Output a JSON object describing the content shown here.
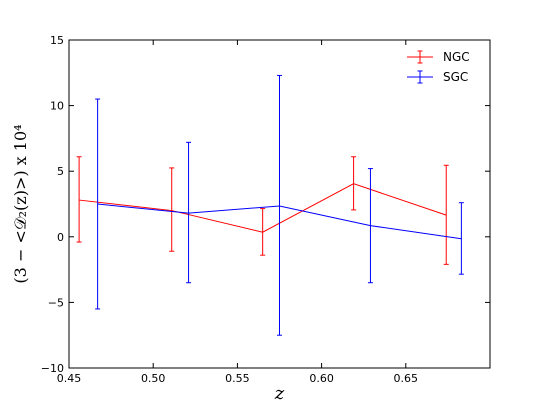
{
  "chart_data": {
    "type": "line",
    "xlabel": "z",
    "ylabel": "(3 − <𝒟₂(z)>) x 10⁴",
    "xlim": [
      0.45,
      0.7
    ],
    "ylim": [
      -10,
      15
    ],
    "xticks": [
      0.45,
      0.5,
      0.55,
      0.6,
      0.65
    ],
    "xtick_labels": [
      "0.45",
      "0.50",
      "0.55",
      "0.60",
      "0.65"
    ],
    "yticks": [
      -10,
      -5,
      0,
      5,
      10,
      15
    ],
    "ytick_labels": [
      "−10",
      "−5",
      "0",
      "5",
      "10",
      "15"
    ],
    "grid": false,
    "legend_position": "top-right",
    "series": [
      {
        "name": "NGC",
        "color": "#ff0000",
        "x": [
          0.456,
          0.511,
          0.565,
          0.619,
          0.674
        ],
        "y": [
          2.8,
          2.0,
          0.35,
          4.05,
          1.65
        ],
        "yerr_low": [
          -0.4,
          -1.1,
          -1.4,
          2.05,
          -2.1
        ],
        "yerr_high": [
          6.1,
          5.25,
          2.15,
          6.1,
          5.45
        ]
      },
      {
        "name": "SGC",
        "color": "#0000ff",
        "x": [
          0.467,
          0.521,
          0.575,
          0.629,
          0.683
        ],
        "y": [
          2.5,
          1.8,
          2.35,
          0.85,
          -0.15
        ],
        "yerr_low": [
          -5.5,
          -3.5,
          -7.5,
          -3.5,
          -2.85
        ],
        "yerr_high": [
          10.5,
          7.2,
          12.3,
          5.2,
          2.6
        ]
      }
    ]
  }
}
